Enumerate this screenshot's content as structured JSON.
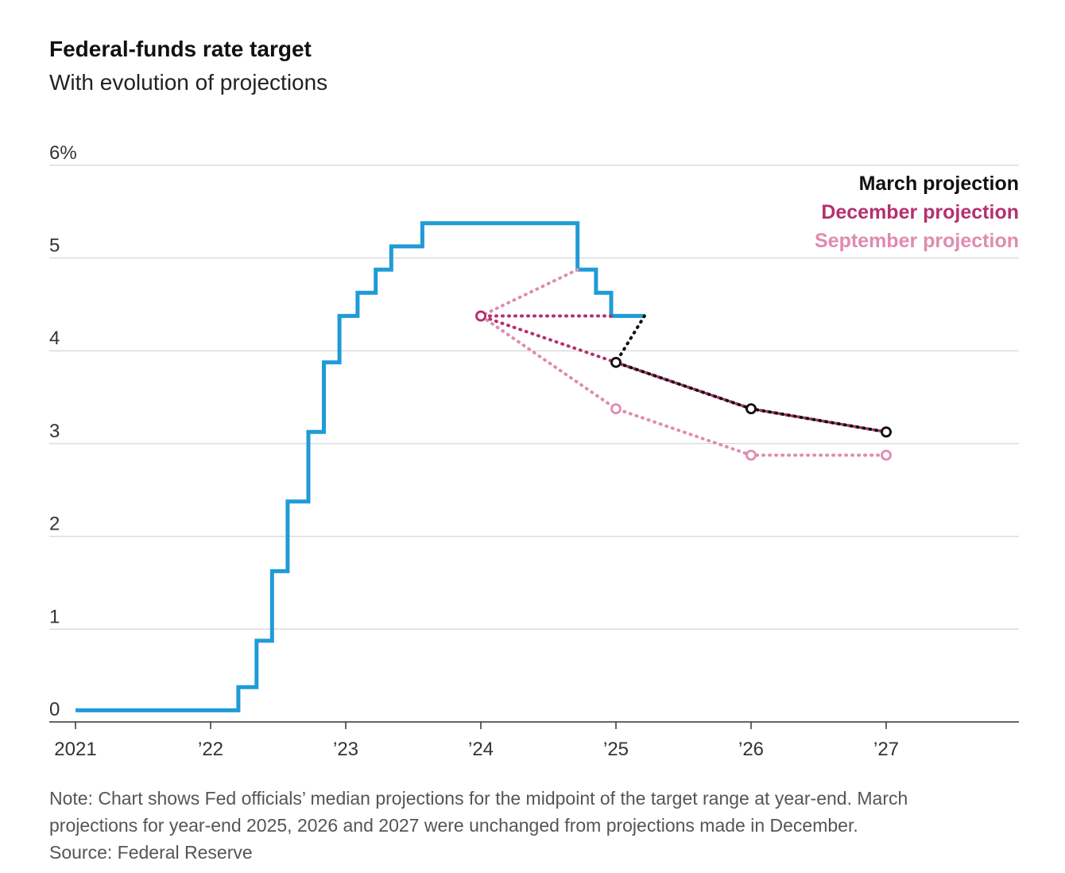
{
  "header": {
    "title": "Federal-funds rate target",
    "subtitle": "With evolution of projections"
  },
  "footer": {
    "note_line1": "Note: Chart shows Fed officials’ median projections for the midpoint of the target range at year-end. March",
    "note_line2": "projections for year-end 2025, 2026 and 2027 were unchanged from projections made in December.",
    "source": "Source: Federal Reserve"
  },
  "chart_data": {
    "type": "line",
    "title": "Federal-funds rate target",
    "subtitle": "With evolution of projections",
    "xlabel": "",
    "ylabel": "",
    "x_range": [
      2021.0,
      2028.0
    ],
    "ylim": [
      0,
      6
    ],
    "y_ticks": [
      {
        "value": 0,
        "label": "0"
      },
      {
        "value": 1,
        "label": "1"
      },
      {
        "value": 2,
        "label": "2"
      },
      {
        "value": 3,
        "label": "3"
      },
      {
        "value": 4,
        "label": "4"
      },
      {
        "value": 5,
        "label": "5"
      },
      {
        "value": 6,
        "label": "6%"
      }
    ],
    "x_ticks": [
      {
        "value": 2021,
        "label": "2021"
      },
      {
        "value": 2022,
        "label": "’22"
      },
      {
        "value": 2023,
        "label": "’23"
      },
      {
        "value": 2024,
        "label": "’24"
      },
      {
        "value": 2025,
        "label": "’25"
      },
      {
        "value": 2026,
        "label": "’26"
      },
      {
        "value": 2027,
        "label": "’27"
      }
    ],
    "grid": true,
    "legend_placement": "top-right",
    "legend": [
      {
        "label": "March projection",
        "color": "#111111"
      },
      {
        "label": "December projection",
        "color": "#b5306f"
      },
      {
        "label": "September projection",
        "color": "#e08bb0"
      }
    ],
    "actual": {
      "color": "#1f9bd7",
      "step": true,
      "points": [
        {
          "x": "2021-01-01",
          "y": 0.125
        },
        {
          "x": "2022-03-17",
          "y": 0.375
        },
        {
          "x": "2022-05-05",
          "y": 0.875
        },
        {
          "x": "2022-06-16",
          "y": 1.625
        },
        {
          "x": "2022-07-28",
          "y": 2.375
        },
        {
          "x": "2022-09-22",
          "y": 3.125
        },
        {
          "x": "2022-11-03",
          "y": 3.875
        },
        {
          "x": "2022-12-15",
          "y": 4.375
        },
        {
          "x": "2023-02-02",
          "y": 4.625
        },
        {
          "x": "2023-03-23",
          "y": 4.875
        },
        {
          "x": "2023-05-04",
          "y": 5.125
        },
        {
          "x": "2023-07-27",
          "y": 5.375
        },
        {
          "x": "2024-09-19",
          "y": 4.875
        },
        {
          "x": "2024-11-08",
          "y": 4.625
        },
        {
          "x": "2024-12-19",
          "y": 4.375
        },
        {
          "x": "2025-03-19",
          "y": 4.375
        }
      ]
    },
    "projections": [
      {
        "name": "September projection",
        "color": "#e08bb0",
        "start": {
          "x": "2024-09-19",
          "y": 4.875
        },
        "points": [
          {
            "x": 2024,
            "y": 4.375
          },
          {
            "x": 2025,
            "y": 3.375
          },
          {
            "x": 2026,
            "y": 2.875
          },
          {
            "x": 2027,
            "y": 2.875
          }
        ]
      },
      {
        "name": "December projection",
        "color": "#b5306f",
        "start": {
          "x": "2024-12-19",
          "y": 4.375
        },
        "points": [
          {
            "x": 2024,
            "y": 4.375
          },
          {
            "x": 2025,
            "y": 3.875
          },
          {
            "x": 2026,
            "y": 3.375
          },
          {
            "x": 2027,
            "y": 3.125
          }
        ]
      },
      {
        "name": "March projection",
        "color": "#111111",
        "start": {
          "x": "2025-03-19",
          "y": 4.375
        },
        "points": [
          {
            "x": 2025,
            "y": 3.875
          },
          {
            "x": 2026,
            "y": 3.375
          },
          {
            "x": 2027,
            "y": 3.125
          }
        ]
      }
    ]
  }
}
